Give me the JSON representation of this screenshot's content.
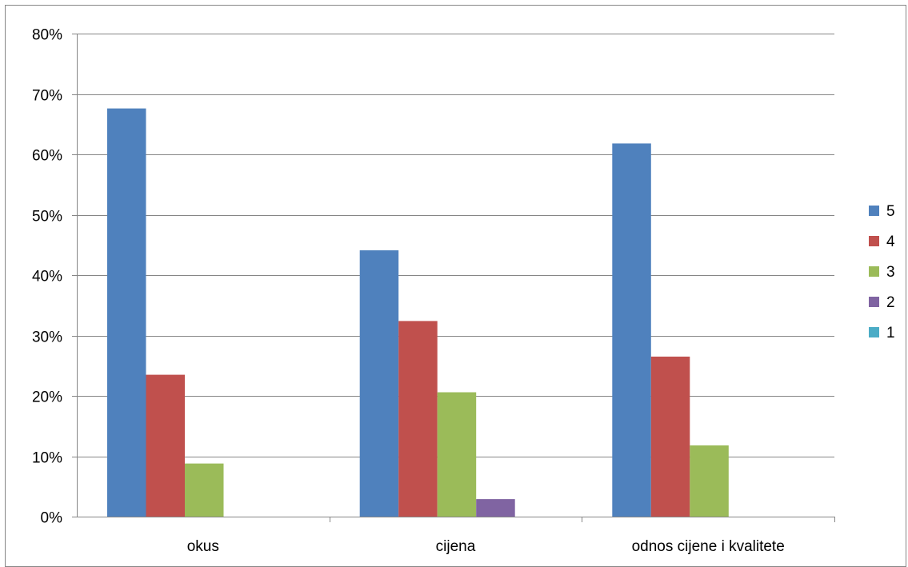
{
  "chart_data": {
    "type": "bar",
    "title": "",
    "xlabel": "",
    "ylabel": "",
    "categories": [
      "okus",
      "cijena",
      "odnos cijene i kvalitete"
    ],
    "series": [
      {
        "name": "5",
        "color": "#4F81BD",
        "values": [
          67.6,
          44.1,
          61.8
        ]
      },
      {
        "name": "4",
        "color": "#C0504D",
        "values": [
          23.5,
          32.4,
          26.5
        ]
      },
      {
        "name": "3",
        "color": "#9BBB59",
        "values": [
          8.8,
          20.6,
          11.8
        ]
      },
      {
        "name": "2",
        "color": "#8064A2",
        "values": [
          0,
          2.9,
          0
        ]
      },
      {
        "name": "1",
        "color": "#4BACC6",
        "values": [
          0,
          0,
          0
        ]
      }
    ],
    "ylim": [
      0,
      80
    ],
    "yticks": [
      "0%",
      "10%",
      "20%",
      "30%",
      "40%",
      "50%",
      "60%",
      "70%",
      "80%"
    ],
    "grid": true,
    "legend_position": "right"
  }
}
